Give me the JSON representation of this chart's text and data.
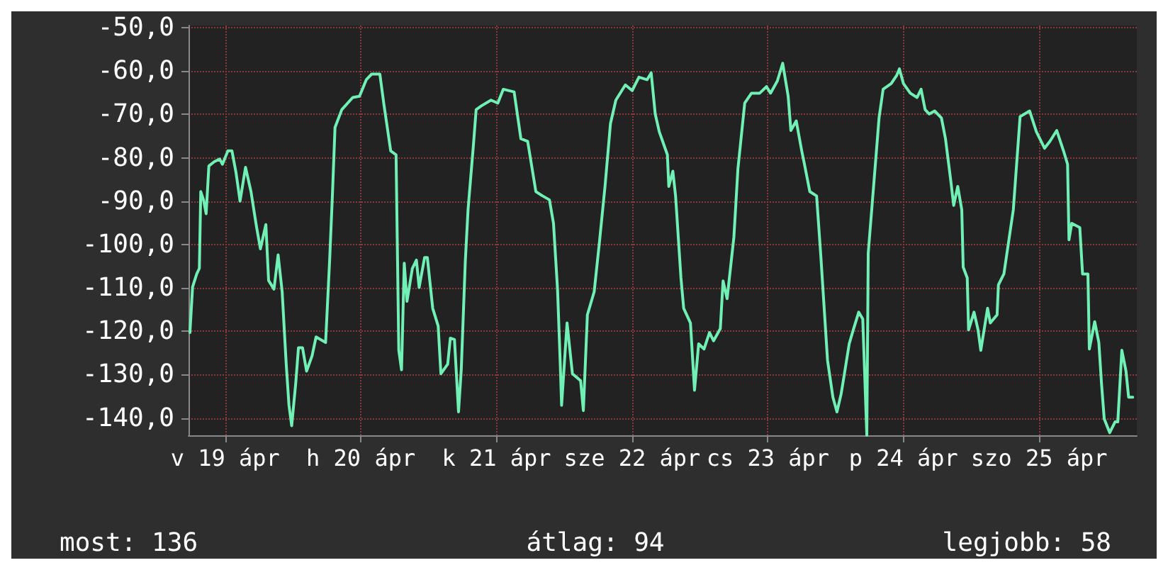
{
  "chart_data": {
    "type": "line",
    "x": [
      "--04-19T05:46",
      "--04-19T06:14",
      "--04-19T06:58",
      "--04-19T07:26",
      "--04-19T07:41",
      "--04-19T08:10",
      "--04-19T08:38",
      "--04-19T09:07",
      "--04-19T10:05",
      "--04-19T11:02",
      "--04-19T11:31",
      "--04-19T12:29",
      "--04-19T13:12",
      "--04-19T13:55",
      "--04-19T14:38",
      "--04-19T15:36",
      "--04-19T16:34",
      "--04-19T17:31",
      "--04-19T18:14",
      "--04-19T19:12",
      "--04-19T19:41",
      "--04-19T20:38",
      "--04-19T21:22",
      "--04-19T22:05",
      "--04-19T22:48",
      "--04-19T23:17",
      "--04-19T23:46",
      "--04-20T00:29",
      "--04-20T00:58",
      "--04-20T01:41",
      "--04-20T02:24",
      "--04-20T03:22",
      "--04-20T04:05",
      "--04-20T05:46",
      "--04-20T06:29",
      "--04-20T06:58",
      "--04-20T07:26",
      "--04-20T08:38",
      "--04-20T10:34",
      "--04-20T11:46",
      "--04-20T12:58",
      "--04-20T13:55",
      "--04-20T15:22",
      "--04-20T16:05",
      "--04-20T17:17",
      "--04-20T18:14",
      "--04-20T18:43",
      "--04-20T19:12",
      "--04-20T19:41",
      "--04-20T20:10",
      "--04-20T21:07",
      "--04-20T21:50",
      "--04-20T22:19",
      "--04-20T23:17",
      "--04-20T23:46",
      "--04-21T00:43",
      "--04-21T01:41",
      "--04-21T02:10",
      "--04-21T03:22",
      "--04-21T03:50",
      "--04-21T04:34",
      "--04-21T05:17",
      "--04-21T05:46",
      "--04-21T06:29",
      "--04-21T06:58",
      "--04-21T07:55",
      "--04-21T08:24",
      "--04-21T09:22",
      "--04-21T11:02",
      "--04-21T12:14",
      "--04-21T13:12",
      "--04-21T15:07",
      "--04-21T16:19",
      "--04-21T17:31",
      "--04-21T18:58",
      "--04-21T20:10",
      "--04-21T21:22",
      "--04-21T22:05",
      "--04-21T22:48",
      "--04-21T23:17",
      "--04-21T23:31",
      "--04-22T00:29",
      "--04-22T01:26",
      "--04-22T02:53",
      "--04-22T03:22",
      "--04-22T04:05",
      "--04-22T05:17",
      "--04-22T06:14",
      "--04-22T07:12",
      "--04-22T08:10",
      "--04-22T09:07",
      "--04-22T10:48",
      "--04-22T12:00",
      "--04-22T13:12",
      "--04-22T14:38",
      "--04-22T15:22",
      "--04-22T16:05",
      "--04-22T16:48",
      "--04-22T18:14",
      "--04-22T18:29",
      "--04-22T19:12",
      "--04-22T19:41",
      "--04-22T20:38",
      "--04-22T21:07",
      "--04-22T22:19",
      "--04-22T23:02",
      "--04-22T23:46",
      "--04-23T00:43",
      "--04-23T01:41",
      "--04-23T02:24",
      "--04-23T03:36",
      "--04-23T04:05",
      "--04-23T04:48",
      "--04-23T06:00",
      "--04-23T06:43",
      "--04-23T07:55",
      "--04-23T09:07",
      "--04-23T10:34",
      "--04-23T11:46",
      "--04-23T12:29",
      "--04-23T13:41",
      "--04-23T14:38",
      "--04-23T15:36",
      "--04-23T16:05",
      "--04-23T17:02",
      "--04-23T18:00",
      "--04-23T18:29",
      "--04-23T19:26",
      "--04-23T20:38",
      "--04-23T21:22",
      "--04-23T22:34",
      "--04-23T23:31",
      "--04-24T00:14",
      "--04-24T00:58",
      "--04-24T01:26",
      "--04-24T02:24",
      "--04-24T03:07",
      "--04-24T04:05",
      "--04-24T04:48",
      "--04-24T05:31",
      "--04-24T05:46",
      "--04-24T06:58",
      "--04-24T07:41",
      "--04-24T08:24",
      "--04-24T09:50",
      "--04-24T10:48",
      "--04-24T11:17",
      "--04-24T12:00",
      "--04-24T13:12",
      "--04-24T14:24",
      "--04-24T15:07",
      "--04-24T15:50",
      "--04-24T16:34",
      "--04-24T17:31",
      "--04-24T18:43",
      "--04-24T19:26",
      "--04-24T20:24",
      "--04-24T20:53",
      "--04-24T21:36",
      "--04-24T22:19",
      "--04-24T22:34",
      "--04-24T23:17",
      "--04-24T23:31",
      "--04-25T00:29",
      "--04-25T01:12",
      "--04-25T01:41",
      "--04-25T02:53",
      "--04-25T03:22",
      "--04-25T04:34",
      "--04-25T04:48",
      "--04-25T05:46",
      "--04-25T07:26",
      "--04-25T08:38",
      "--04-25T10:19",
      "--04-25T11:31",
      "--04-25T12:58",
      "--04-25T13:55",
      "--04-25T15:07",
      "--04-25T16:19",
      "--04-25T17:02",
      "--04-25T17:17",
      "--04-25T17:46",
      "--04-25T19:12",
      "--04-25T19:41",
      "--04-25T20:38",
      "--04-25T20:53",
      "--04-25T21:50",
      "--04-25T22:34",
      "--04-25T23:02",
      "--04-25T23:31",
      "--04-26T00:29",
      "--04-26T01:26",
      "--04-26T01:55",
      "--04-26T02:38",
      "--04-26T03:22",
      "--04-26T03:50",
      "--04-26T04:34"
    ],
    "series": [
      {
        "color": "#70f0b4",
        "values": [
          -120.3,
          -109.8,
          -106.8,
          -105.5,
          -87.8,
          -89.7,
          -92.9,
          -81.9,
          -80.9,
          -80.3,
          -81.5,
          -78.4,
          -78.4,
          -83.4,
          -90,
          -82.2,
          -87.8,
          -95.7,
          -101,
          -95.4,
          -108.3,
          -110.3,
          -102.4,
          -110.9,
          -127.6,
          -137,
          -141.8,
          -132,
          -123.8,
          -123.8,
          -129.2,
          -125.7,
          -121.3,
          -122.6,
          -103.6,
          -88.8,
          -73,
          -68.9,
          -66.1,
          -65.8,
          -62,
          -60.7,
          -60.7,
          -67.7,
          -78.4,
          -79.3,
          -124.4,
          -128.9,
          -104.3,
          -113.1,
          -105.5,
          -103.6,
          -109.9,
          -103,
          -103,
          -114.7,
          -118.8,
          -129.8,
          -127.6,
          -121.6,
          -121.9,
          -138.6,
          -128.9,
          -103.9,
          -92,
          -77.1,
          -68.9,
          -68,
          -66.7,
          -67.4,
          -64.2,
          -64.8,
          -75.6,
          -76.2,
          -87.8,
          -88.8,
          -89.7,
          -95.1,
          -110.3,
          -127.6,
          -137.1,
          -118.1,
          -129.8,
          -131.4,
          -138.3,
          -116.2,
          -110.9,
          -99.2,
          -86.6,
          -72.1,
          -66.7,
          -63.2,
          -64.5,
          -61.4,
          -62,
          -60.4,
          -69.9,
          -74,
          -79.3,
          -86.6,
          -83.1,
          -88.8,
          -107.7,
          -114.7,
          -118.1,
          -133.6,
          -122.9,
          -124.1,
          -120.3,
          -122.2,
          -119.4,
          -108.4,
          -112.5,
          -98.3,
          -82.5,
          -67.4,
          -65.1,
          -65.1,
          -63.6,
          -65.1,
          -62.3,
          -58.2,
          -65.8,
          -73.7,
          -71.5,
          -78.4,
          -81.5,
          -87.8,
          -88.8,
          -102.4,
          -126.7,
          -135.2,
          -138.6,
          -134.5,
          -130.8,
          -122.9,
          -119.7,
          -115.6,
          -117.2,
          -144,
          -102,
          -82.5,
          -70.8,
          -64.2,
          -62.9,
          -61,
          -59.5,
          -62.9,
          -65.1,
          -66.1,
          -64.2,
          -68.9,
          -69.9,
          -69.2,
          -70.8,
          -75.6,
          -85.6,
          -91,
          -86.6,
          -92,
          -105.2,
          -107.7,
          -119.7,
          -115.6,
          -119.7,
          -124.4,
          -114.7,
          -118.1,
          -116.2,
          -109.3,
          -106.8,
          -92,
          -70.5,
          -69.2,
          -74,
          -77.8,
          -76.2,
          -73.7,
          -78.4,
          -81.5,
          -98.9,
          -95.1,
          -96.1,
          -106.8,
          -106.8,
          -124.1,
          -117.8,
          -122.6,
          -132,
          -140.2,
          -143.4,
          -140.9,
          -140.9,
          -124.4,
          -129.2,
          -135.2,
          -135.2
        ]
      }
    ],
    "xlim": [
      "--04-19T05:31",
      "--04-26T05:17"
    ],
    "xticks": [
      {
        "value": "--04-19T12:00",
        "label": "v 19 ápr"
      },
      {
        "value": "--04-20T12:00",
        "label": "h 20 ápr"
      },
      {
        "value": "--04-21T12:00",
        "label": "k 21 ápr"
      },
      {
        "value": "--04-22T12:00",
        "label": "sze 22 ápr"
      },
      {
        "value": "--04-23T12:00",
        "label": "cs 23 ápr"
      },
      {
        "value": "--04-24T12:00",
        "label": "p 24 ápr"
      },
      {
        "value": "--04-25T12:00",
        "label": "szo 25 ápr"
      }
    ],
    "ylim": [
      -144,
      -49.5
    ],
    "yticks": [
      {
        "value": -140,
        "label": "-140,0"
      },
      {
        "value": -130,
        "label": "-130,0"
      },
      {
        "value": -120,
        "label": "-120,0"
      },
      {
        "value": -110,
        "label": "-110,0"
      },
      {
        "value": -100,
        "label": "-100,0"
      },
      {
        "value": -90,
        "label": "-90,0"
      },
      {
        "value": -80,
        "label": "-80,0"
      },
      {
        "value": -70,
        "label": "-70,0"
      },
      {
        "value": -60,
        "label": "-60,0"
      },
      {
        "value": -50,
        "label": "-50,0"
      }
    ],
    "grid": true,
    "marker": "none",
    "line_style": "solid",
    "annotations": [
      "most: 136",
      "átlag: 94",
      "legjobb: 58"
    ]
  }
}
